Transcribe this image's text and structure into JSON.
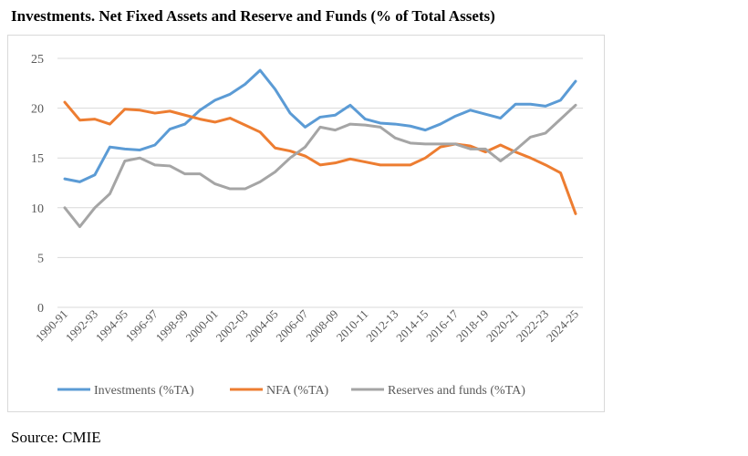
{
  "title": "Investments. Net Fixed Assets and Reserve and Funds (% of Total Assets)",
  "source": "Source: CMIE",
  "chart_data": {
    "type": "line",
    "title": "Investments. Net Fixed Assets and Reserve and Funds (% of Total Assets)",
    "xlabel": "",
    "ylabel": "",
    "ylim": [
      0,
      25
    ],
    "yticks": [
      "0",
      "5",
      "10",
      "15",
      "20",
      "25"
    ],
    "grid": true,
    "legend": "bottom",
    "x": [
      "1990-91",
      "1991-92",
      "1992-93",
      "1993-94",
      "1994-95",
      "1995-96",
      "1996-97",
      "1997-98",
      "1998-99",
      "1999-00",
      "2000-01",
      "2001-02",
      "2002-03",
      "2003-04",
      "2004-05",
      "2005-06",
      "2006-07",
      "2007-08",
      "2008-09",
      "2009-10",
      "2010-11",
      "2011-12",
      "2012-13",
      "2013-14",
      "2014-15",
      "2015-16",
      "2016-17",
      "2017-18",
      "2018-19",
      "2019-20",
      "2020-21",
      "2021-22",
      "2022-23",
      "2023-24",
      "2024-25"
    ],
    "xtick_labels": [
      "1990-91",
      "1992-93",
      "1994-95",
      "1996-97",
      "1998-99",
      "2000-01",
      "2002-03",
      "2004-05",
      "2006-07",
      "2008-09",
      "2010-11",
      "2012-13",
      "2014-15",
      "2016-17",
      "2018-19",
      "2020-21",
      "2022-23",
      "2024-25"
    ],
    "series": [
      {
        "name": "Investments (%TA)",
        "color": "#5b9bd5",
        "values": [
          12.9,
          12.6,
          13.3,
          16.1,
          15.9,
          15.8,
          16.3,
          17.9,
          18.4,
          19.8,
          20.8,
          21.4,
          22.4,
          23.8,
          21.9,
          19.5,
          18.1,
          19.1,
          19.3,
          20.3,
          18.9,
          18.5,
          18.4,
          18.2,
          17.8,
          18.4,
          19.2,
          19.8,
          19.4,
          19.0,
          20.4,
          20.4,
          20.2,
          20.8,
          22.7
        ]
      },
      {
        "name": "NFA (%TA)",
        "color": "#ed7d31",
        "values": [
          20.6,
          18.8,
          18.9,
          18.4,
          19.9,
          19.8,
          19.5,
          19.7,
          19.3,
          18.9,
          18.6,
          19.0,
          18.3,
          17.6,
          16.0,
          15.7,
          15.2,
          14.3,
          14.5,
          14.9,
          14.6,
          14.3,
          14.3,
          14.3,
          15.0,
          16.1,
          16.4,
          16.2,
          15.6,
          16.3,
          15.6,
          15.0,
          14.3,
          13.5,
          9.4
        ]
      },
      {
        "name": "Reserves and funds (%TA)",
        "color": "#a5a5a5",
        "values": [
          10.0,
          8.1,
          10.0,
          11.4,
          14.7,
          15.0,
          14.3,
          14.2,
          13.4,
          13.4,
          12.4,
          11.9,
          11.9,
          12.6,
          13.6,
          15.0,
          16.1,
          18.1,
          17.8,
          18.4,
          18.3,
          18.1,
          17.0,
          16.5,
          16.4,
          16.4,
          16.4,
          15.9,
          15.9,
          14.7,
          15.8,
          17.1,
          17.5,
          18.9,
          20.3
        ]
      }
    ]
  }
}
